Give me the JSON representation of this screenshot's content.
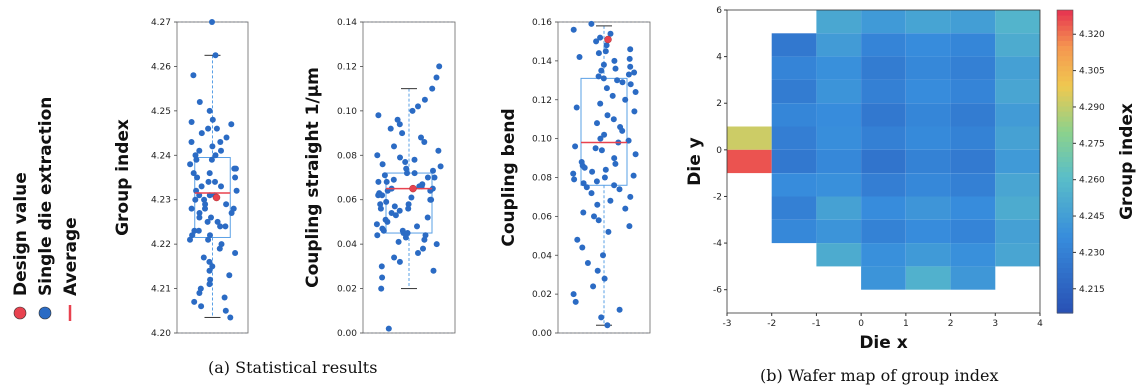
{
  "colors": {
    "point": "#2b6bc4",
    "design": "#e8424f",
    "average": "#e8424f",
    "box": "#5aa0e6",
    "whisker": "#5aa0e6"
  },
  "legend": {
    "items": [
      {
        "label": "Design value",
        "symbol": "dot",
        "color": "#e8424f"
      },
      {
        "label": "Single die extraction",
        "symbol": "dot",
        "color": "#2b6bc4"
      },
      {
        "label": "Average",
        "symbol": "line",
        "color": "#e8424f"
      }
    ]
  },
  "captions": {
    "a": "(a) Statistical results",
    "b": "(b) Wafer map of group index"
  },
  "chart_data": [
    {
      "type": "scatter",
      "ylabel": "Group index",
      "ylim": [
        4.2,
        4.27
      ],
      "yticks": [
        "4.20",
        "4.21",
        "4.22",
        "4.23",
        "4.24",
        "4.25",
        "4.26",
        "4.27"
      ],
      "design_value": 4.2305,
      "average": 4.2315,
      "box": {
        "q1": 4.2215,
        "q3": 4.2395,
        "whisker_low": 4.2035,
        "whisker_high": 4.2625
      },
      "values": [
        4.27,
        4.2625,
        4.258,
        4.252,
        4.25,
        4.248,
        4.2475,
        4.247,
        4.246,
        4.246,
        4.245,
        4.244,
        4.243,
        4.243,
        4.242,
        4.241,
        4.241,
        4.24,
        4.24,
        4.239,
        4.239,
        4.238,
        4.237,
        4.237,
        4.236,
        4.236,
        4.235,
        4.235,
        4.234,
        4.234,
        4.233,
        4.233,
        4.232,
        4.232,
        4.231,
        4.231,
        4.231,
        4.23,
        4.23,
        4.229,
        4.229,
        4.228,
        4.228,
        4.228,
        4.227,
        4.227,
        4.226,
        4.226,
        4.225,
        4.225,
        4.224,
        4.224,
        4.223,
        4.223,
        4.222,
        4.222,
        4.221,
        4.221,
        4.22,
        4.219,
        4.218,
        4.217,
        4.216,
        4.215,
        4.214,
        4.213,
        4.212,
        4.211,
        4.21,
        4.209,
        4.208,
        4.207,
        4.206,
        4.205,
        4.2035
      ]
    },
    {
      "type": "scatter",
      "ylabel": "Coupling straight 1/μm",
      "ylim": [
        0.0,
        0.14
      ],
      "yticks": [
        "0.00",
        "0.02",
        "0.04",
        "0.06",
        "0.08",
        "0.10",
        "0.12",
        "0.14"
      ],
      "design_value": 0.065,
      "average": 0.065,
      "box": {
        "q1": 0.045,
        "q3": 0.072,
        "whisker_low": 0.02,
        "whisker_high": 0.11
      },
      "values": [
        0.12,
        0.115,
        0.11,
        0.105,
        0.102,
        0.1,
        0.098,
        0.096,
        0.094,
        0.092,
        0.09,
        0.088,
        0.086,
        0.084,
        0.082,
        0.08,
        0.079,
        0.078,
        0.077,
        0.076,
        0.075,
        0.074,
        0.073,
        0.072,
        0.072,
        0.071,
        0.07,
        0.07,
        0.069,
        0.068,
        0.068,
        0.067,
        0.066,
        0.066,
        0.065,
        0.065,
        0.064,
        0.064,
        0.063,
        0.062,
        0.062,
        0.061,
        0.06,
        0.06,
        0.059,
        0.058,
        0.058,
        0.057,
        0.056,
        0.056,
        0.055,
        0.054,
        0.053,
        0.052,
        0.051,
        0.05,
        0.049,
        0.048,
        0.047,
        0.046,
        0.046,
        0.045,
        0.045,
        0.044,
        0.044,
        0.043,
        0.042,
        0.041,
        0.04,
        0.038,
        0.036,
        0.034,
        0.032,
        0.03,
        0.028,
        0.025,
        0.02,
        0.002
      ]
    },
    {
      "type": "scatter",
      "ylabel": "Coupling bend",
      "ylim": [
        0.0,
        0.16
      ],
      "yticks": [
        "0.00",
        "0.02",
        "0.04",
        "0.06",
        "0.08",
        "0.10",
        "0.12",
        "0.14",
        "0.16"
      ],
      "design_value": 0.151,
      "average": 0.098,
      "box": {
        "q1": 0.076,
        "q3": 0.131,
        "whisker_low": 0.004,
        "whisker_high": 0.158
      },
      "values": [
        0.159,
        0.156,
        0.154,
        0.152,
        0.15,
        0.148,
        0.146,
        0.145,
        0.144,
        0.142,
        0.141,
        0.14,
        0.138,
        0.137,
        0.136,
        0.135,
        0.134,
        0.133,
        0.132,
        0.131,
        0.13,
        0.129,
        0.128,
        0.126,
        0.124,
        0.122,
        0.12,
        0.118,
        0.116,
        0.114,
        0.112,
        0.11,
        0.108,
        0.106,
        0.104,
        0.102,
        0.1,
        0.099,
        0.098,
        0.096,
        0.095,
        0.094,
        0.092,
        0.09,
        0.088,
        0.087,
        0.086,
        0.085,
        0.084,
        0.083,
        0.082,
        0.081,
        0.08,
        0.079,
        0.078,
        0.077,
        0.076,
        0.075,
        0.074,
        0.072,
        0.07,
        0.068,
        0.066,
        0.064,
        0.062,
        0.06,
        0.058,
        0.055,
        0.052,
        0.048,
        0.044,
        0.04,
        0.036,
        0.032,
        0.028,
        0.024,
        0.02,
        0.016,
        0.012,
        0.008,
        0.004
      ]
    },
    {
      "type": "heatmap",
      "xlabel": "Die x",
      "ylabel": "Die y",
      "xlim": [
        -3,
        4
      ],
      "ylim": [
        -7,
        6
      ],
      "xticks": [
        "-3",
        "-2",
        "-1",
        "0",
        "1",
        "2",
        "3",
        "4"
      ],
      "yticks": [
        "-6",
        "-4",
        "-2",
        "0",
        "2",
        "4",
        "6"
      ],
      "colorbar": {
        "label": "Group index",
        "min": 4.205,
        "max": 4.33,
        "ticks": [
          "4.215",
          "4.230",
          "4.245",
          "4.260",
          "4.275",
          "4.290",
          "4.305",
          "4.320"
        ]
      },
      "cells": [
        {
          "x": -1,
          "y": 5,
          "v": 4.25
        },
        {
          "x": 0,
          "y": 5,
          "v": 4.243
        },
        {
          "x": 1,
          "y": 5,
          "v": 4.248
        },
        {
          "x": 2,
          "y": 5,
          "v": 4.245
        },
        {
          "x": 3,
          "y": 5,
          "v": 4.256
        },
        {
          "x": -2,
          "y": 4,
          "v": 4.226
        },
        {
          "x": -1,
          "y": 4,
          "v": 4.244
        },
        {
          "x": 0,
          "y": 4,
          "v": 4.232
        },
        {
          "x": 1,
          "y": 4,
          "v": 4.236
        },
        {
          "x": 2,
          "y": 4,
          "v": 4.233
        },
        {
          "x": 3,
          "y": 4,
          "v": 4.252
        },
        {
          "x": -2,
          "y": 3,
          "v": 4.232
        },
        {
          "x": -1,
          "y": 3,
          "v": 4.238
        },
        {
          "x": 0,
          "y": 3,
          "v": 4.228
        },
        {
          "x": 1,
          "y": 3,
          "v": 4.234
        },
        {
          "x": 2,
          "y": 3,
          "v": 4.23
        },
        {
          "x": 3,
          "y": 3,
          "v": 4.246
        },
        {
          "x": -2,
          "y": 2,
          "v": 4.228
        },
        {
          "x": -1,
          "y": 2,
          "v": 4.24
        },
        {
          "x": 0,
          "y": 2,
          "v": 4.23
        },
        {
          "x": 1,
          "y": 2,
          "v": 4.236
        },
        {
          "x": 2,
          "y": 2,
          "v": 4.232
        },
        {
          "x": 3,
          "y": 2,
          "v": 4.249
        },
        {
          "x": -2,
          "y": 1,
          "v": 4.233
        },
        {
          "x": -1,
          "y": 1,
          "v": 4.236
        },
        {
          "x": 0,
          "y": 1,
          "v": 4.226
        },
        {
          "x": 1,
          "y": 1,
          "v": 4.233
        },
        {
          "x": 2,
          "y": 1,
          "v": 4.228
        },
        {
          "x": 3,
          "y": 1,
          "v": 4.244
        },
        {
          "x": -3,
          "y": 0,
          "v": 4.292
        },
        {
          "x": -2,
          "y": 0,
          "v": 4.229
        },
        {
          "x": -1,
          "y": 0,
          "v": 4.237
        },
        {
          "x": 0,
          "y": 0,
          "v": 4.23
        },
        {
          "x": 1,
          "y": 0,
          "v": 4.235
        },
        {
          "x": 2,
          "y": 0,
          "v": 4.231
        },
        {
          "x": 3,
          "y": 0,
          "v": 4.247
        },
        {
          "x": -3,
          "y": -1,
          "v": 4.325
        },
        {
          "x": -2,
          "y": -1,
          "v": 4.226
        },
        {
          "x": -1,
          "y": -1,
          "v": 4.234
        },
        {
          "x": 0,
          "y": -1,
          "v": 4.224
        },
        {
          "x": 1,
          "y": -1,
          "v": 4.231
        },
        {
          "x": 2,
          "y": -1,
          "v": 4.227
        },
        {
          "x": 3,
          "y": -1,
          "v": 4.243
        },
        {
          "x": -2,
          "y": -2,
          "v": 4.236
        },
        {
          "x": -1,
          "y": -2,
          "v": 4.238
        },
        {
          "x": 0,
          "y": -2,
          "v": 4.229
        },
        {
          "x": 1,
          "y": -2,
          "v": 4.234
        },
        {
          "x": 2,
          "y": -2,
          "v": 4.23
        },
        {
          "x": 3,
          "y": -2,
          "v": 4.249
        },
        {
          "x": -2,
          "y": -3,
          "v": 4.23
        },
        {
          "x": -1,
          "y": -3,
          "v": 4.247
        },
        {
          "x": 0,
          "y": -3,
          "v": 4.236
        },
        {
          "x": 1,
          "y": -3,
          "v": 4.241
        },
        {
          "x": 2,
          "y": -3,
          "v": 4.236
        },
        {
          "x": 3,
          "y": -3,
          "v": 4.252
        },
        {
          "x": -2,
          "y": -4,
          "v": 4.234
        },
        {
          "x": -1,
          "y": -4,
          "v": 4.24
        },
        {
          "x": 0,
          "y": -4,
          "v": 4.231
        },
        {
          "x": 1,
          "y": -4,
          "v": 4.236
        },
        {
          "x": 2,
          "y": -4,
          "v": 4.232
        },
        {
          "x": 3,
          "y": -4,
          "v": 4.246
        },
        {
          "x": -1,
          "y": -5,
          "v": 4.252
        },
        {
          "x": 0,
          "y": -5,
          "v": 4.238
        },
        {
          "x": 1,
          "y": -5,
          "v": 4.243
        },
        {
          "x": 2,
          "y": -5,
          "v": 4.238
        },
        {
          "x": 3,
          "y": -5,
          "v": 4.249
        },
        {
          "x": 0,
          "y": -6,
          "v": 4.24
        },
        {
          "x": 1,
          "y": -6,
          "v": 4.255
        },
        {
          "x": 2,
          "y": -6,
          "v": 4.242
        }
      ]
    }
  ]
}
